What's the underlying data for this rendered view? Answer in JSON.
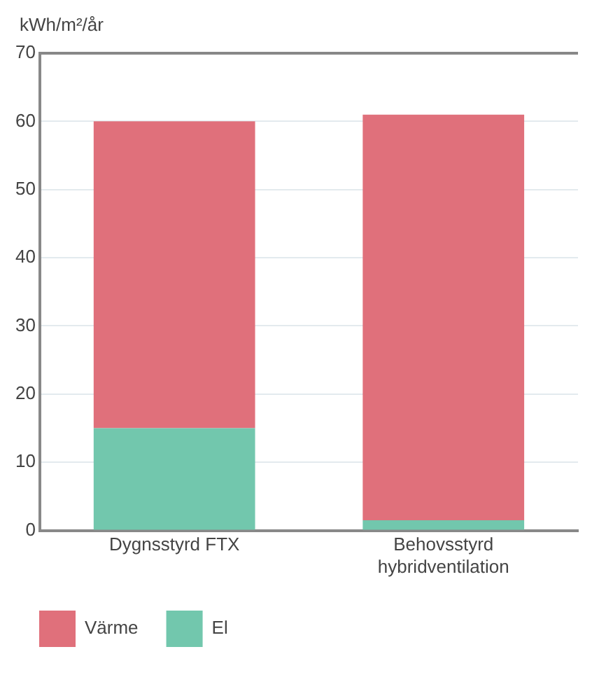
{
  "chart_data": {
    "type": "bar",
    "ylabel": "kWh/m²/år",
    "categories": [
      "Dygnsstyrd FTX",
      "Behovsstyrd hybridventilation"
    ],
    "series": [
      {
        "name": "El",
        "color": "#72c7ad",
        "values": [
          15,
          1.5
        ]
      },
      {
        "name": "Värme",
        "color": "#e0707b",
        "values": [
          45,
          59.5
        ]
      }
    ],
    "stacked": true,
    "ylim": [
      0,
      70
    ],
    "yticks": [
      0,
      10,
      20,
      30,
      40,
      50,
      60,
      70
    ],
    "grid": "y",
    "legend": "bottom left"
  }
}
